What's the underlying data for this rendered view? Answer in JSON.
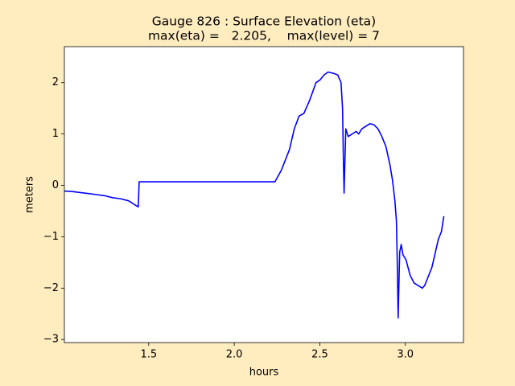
{
  "chart_data": {
    "type": "line",
    "title": "Gauge 826 : Surface Elevation (eta)",
    "subtitle": "max(eta) =   2.205,    max(level) = 7",
    "x_label": "hours",
    "y_label": "meters",
    "xlim": [
      1.007,
      3.34
    ],
    "ylim": [
      -3.06,
      2.7
    ],
    "xticks": [
      {
        "value": 1.5,
        "label": "1.5"
      },
      {
        "value": 2.0,
        "label": "2.0"
      },
      {
        "value": 2.5,
        "label": "2.5"
      },
      {
        "value": 3.0,
        "label": "3.0"
      }
    ],
    "yticks": [
      {
        "value": -3,
        "label": "−3"
      },
      {
        "value": -2,
        "label": "−2"
      },
      {
        "value": -1,
        "label": "−1"
      },
      0,
      1,
      2
    ],
    "grid": false,
    "series": [
      {
        "name": "eta",
        "color": "#0000ff",
        "x": [
          1.007,
          1.053,
          1.1,
          1.147,
          1.194,
          1.241,
          1.288,
          1.335,
          1.382,
          1.42,
          1.439,
          1.444,
          2.238,
          2.276,
          2.323,
          2.351,
          2.379,
          2.407,
          2.44,
          2.478,
          2.501,
          2.525,
          2.548,
          2.581,
          2.605,
          2.624,
          2.633,
          2.638,
          2.642,
          2.647,
          2.652,
          2.666,
          2.689,
          2.713,
          2.727,
          2.746,
          2.769,
          2.793,
          2.816,
          2.84,
          2.863,
          2.887,
          2.91,
          2.925,
          2.939,
          2.948,
          2.953,
          2.958,
          2.962,
          2.967,
          2.976,
          2.986,
          3.004,
          3.028,
          3.051,
          3.075,
          3.099,
          3.113,
          3.131,
          3.155,
          3.169,
          3.193,
          3.211,
          3.225
        ],
        "values": [
          -0.11,
          -0.12,
          -0.14,
          -0.16,
          -0.18,
          -0.2,
          -0.24,
          -0.26,
          -0.3,
          -0.38,
          -0.42,
          0.07,
          0.07,
          0.3,
          0.7,
          1.1,
          1.35,
          1.4,
          1.65,
          2.0,
          2.05,
          2.15,
          2.205,
          2.18,
          2.15,
          2.0,
          1.5,
          0.5,
          -0.15,
          0.5,
          1.1,
          0.95,
          1.0,
          1.05,
          1.0,
          1.1,
          1.15,
          1.2,
          1.18,
          1.1,
          0.95,
          0.75,
          0.4,
          0.1,
          -0.3,
          -0.7,
          -1.5,
          -2.58,
          -2.0,
          -1.3,
          -1.15,
          -1.35,
          -1.45,
          -1.75,
          -1.9,
          -1.95,
          -2.0,
          -1.95,
          -1.8,
          -1.6,
          -1.4,
          -1.05,
          -0.9,
          -0.6
        ]
      }
    ]
  }
}
